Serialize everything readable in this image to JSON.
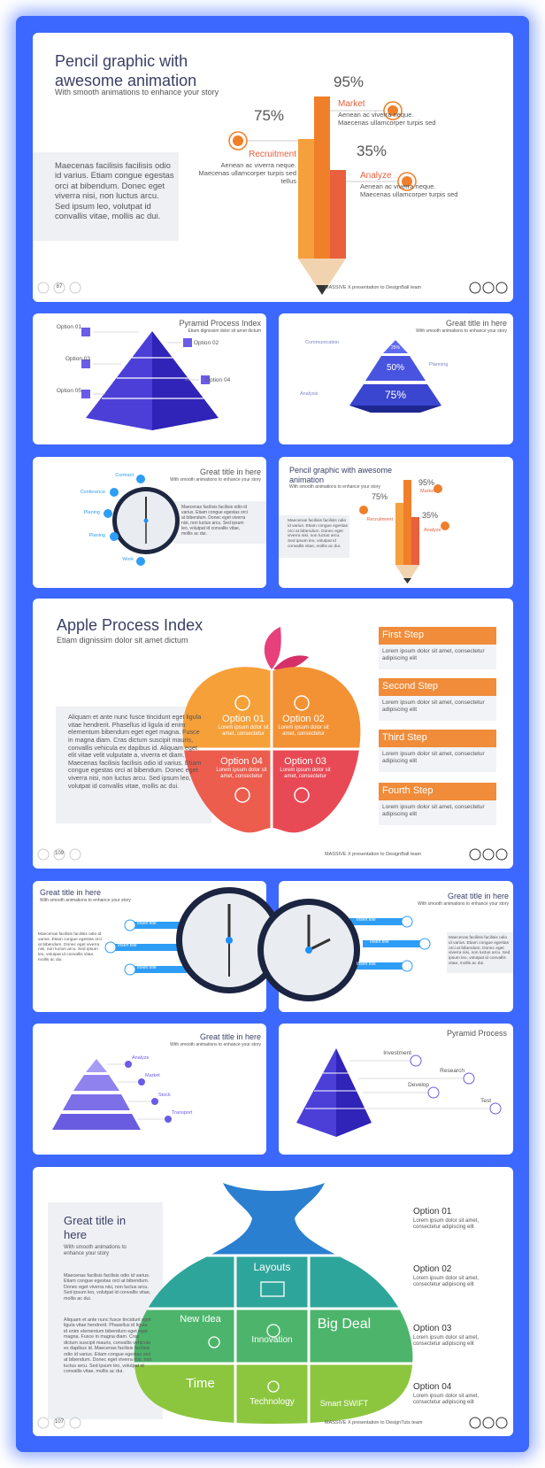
{
  "slides": [
    {
      "title": "Pencil graphic with awesome animation",
      "subtitle": "With smooth animations to enhance your story",
      "body": "Maecenas facilisis facilisis odio id varius. Etiam congue egestas orci at bibendum. Donec eget viverra nisi, non luctus arcu. Sed ipsum leo, volutpat id convallis vitae, mollis ac dui.",
      "items": [
        {
          "percent": "95%",
          "label": "Market",
          "text": "Aenean ac viverra neque. Maecenas ullamcorper turpis sed"
        },
        {
          "percent": "75%",
          "label": "Recruitment",
          "text": "Aenean ac viverra neque. Maecenas ullamcorper turpis sed tellus"
        },
        {
          "percent": "35%",
          "label": "Analyze",
          "text": "Aenean ac viverra neque. Maecenas ullamcorper turpis sed"
        }
      ],
      "page": "87",
      "footer": "MASSIVE X presentation to DesignBall team"
    },
    {
      "title": "Pyramid Process Index",
      "subtitle": "Etiam dignissim dolor sit amet dictum",
      "options": [
        "Option 01",
        "Option 02",
        "Option 03",
        "Option 04",
        "Option 05"
      ]
    },
    {
      "title": "Great title in here",
      "subtitle": "With smooth animations to enhance your story",
      "labels": [
        "Communication",
        "Planning",
        "Analysis"
      ],
      "levels": [
        "25%",
        "50%",
        "75%"
      ]
    },
    {
      "title": "Great title in here",
      "subtitle": "With smooth animations to enhance your story",
      "labels": [
        "Contract",
        "Conference",
        "Planing",
        "Planing",
        "Work"
      ],
      "body": "Maecenas facilisis facilisis odio id varius. Etiam congue egestas orci at bibendum. Donec eget viverra nisi, non luctus arcu. Sed ipsum leo, volutpat id convallis vitae, mollis ac dui."
    },
    {
      "title": "Pencil graphic with awesome animation",
      "subtitle": "With smooth animations to enhance your story",
      "body": "Maecenas facilisis facilisis odio id varius. Etiam congue egestas orci at bibendum. Donec eget viverra nisi, non luctus arcu. Sed ipsum leo, volutpat id convallis vitae, mollis ac dui.",
      "items": [
        {
          "percent": "95%",
          "label": "Market"
        },
        {
          "percent": "75%",
          "label": "Recruitment"
        },
        {
          "percent": "35%",
          "label": "Analyze"
        }
      ]
    },
    {
      "title": "Apple Process Index",
      "subtitle": "Etiam dignissim dolor sit amet dictum",
      "body": "Aliquam et ante nunc fusce tincidunt eget ligula vitae hendrerit. Phasellus id ligula id enim elementum bibendum eget eget magna. Fusce in magna diam. Cras dictum suscipit mauris, convallis vehicula ex dapibus id. Aliquam eget elit vitae velit vulputate a, viverra et diam. Maecenas facilisis facilisis odio id varius. Etiam congue egestas orci at bibendum. Donec eget viverra nisi, non luctus arcu. Sed ipsum leo, volutpat id convallis vitae, mollis ac dui.",
      "options": [
        {
          "label": "Option 01",
          "text": "Lorem ipsum dolor sit amet, consectetur"
        },
        {
          "label": "Option 02",
          "text": "Lorem ipsum dolor sit amet, consectetur"
        },
        {
          "label": "Option 04",
          "text": "Lorem ipsum dolor sit amet, consectetur"
        },
        {
          "label": "Option 03",
          "text": "Lorem ipsum dolor sit amet, consectetur"
        }
      ],
      "steps": [
        {
          "label": "First Step",
          "text": "Lorem ipsum dolor sit amet, consectetur adipiscing elit"
        },
        {
          "label": "Second Step",
          "text": "Lorem ipsum dolor sit amet, consectetur adipiscing elit"
        },
        {
          "label": "Third Step",
          "text": "Lorem ipsum dolor sit amet, consectetur adipiscing elit"
        },
        {
          "label": "Fourth Step",
          "text": "Lorem ipsum dolor sit amet, consectetur adipiscing elit"
        }
      ],
      "page": "109",
      "footer": "MASSIVE X presentation to DesignBall team"
    },
    {
      "title": "Great title in here",
      "subtitle": "With smooth animations to enhance your story",
      "labels": [
        "Insert title",
        "Insert title",
        "Insert title"
      ],
      "body": "Maecenas facilisis facilisis odio id varius. Etiam congue egestas orci at bibendum. Donec eget viverra nisi, non luctus arcu. Sed ipsum leo, volutpat id convallis vitae, mollis ac dui."
    },
    {
      "title": "Great title in here",
      "subtitle": "With smooth animations to enhance your story",
      "labels": [
        "Insert title",
        "Insert title",
        "Insert title"
      ],
      "body": "Maecenas facilisis facilisis odio id varius. Etiam congue egestas orci at bibendum. Donec eget viverra nisi, non luctus arcu. Sed ipsum leo, volutpat id convallis vitae, mollis ac dui."
    },
    {
      "title": "Great title in here",
      "subtitle": "With smooth animations to enhance your story",
      "labels": [
        "Analyze",
        "Market",
        "Stock",
        "Transport"
      ]
    },
    {
      "title": "Pyramid Process",
      "labels": [
        "Investment",
        "Research",
        "Develop",
        "Test"
      ]
    },
    {
      "title": "Great title in here",
      "subtitle": "With smooth animations to enhance your story",
      "body": [
        "Maecenas facilisis facilisis odio id varius. Etiam congue egestas orci at bibendum. Donec eget viverra nisi, non luctus arcu. Sed ipsum leo, volutpat id convallis vitae, mollis ac dui.",
        "Aliquam et ante nunc fusce tincidunt eget ligula vitae hendrerit. Phasellus id ligula id enim elementum bibendum eget eget magna. Fusce in magna diam. Cras dictum suscipit mauris, convallis vehicula ex dapibus id. Maecenas facilisis facilisis odio id varius. Etiam congue egestas orci at bibendum. Donec eget viverra nisi, non luctus arcu. Sed ipsum leo, volutpat id convallis vitae, mollis ac dui."
      ],
      "cells": [
        "Layouts",
        "New Idea",
        "Innovation",
        "Big Deal",
        "Time",
        "Technology",
        "Smart SWIFT"
      ],
      "options": [
        {
          "label": "Option 01",
          "text": "Lorem ipsum dolor sit amet, consectetur adipiscing elit"
        },
        {
          "label": "Option 02",
          "text": "Lorem ipsum dolor sit amet, consectetur adipiscing elit"
        },
        {
          "label": "Option 03",
          "text": "Lorem ipsum dolor sit amet, consectetur adipiscing elit"
        },
        {
          "label": "Option 04",
          "text": "Lorem ipsum dolor sit amet, consectetur adipiscing elit"
        }
      ],
      "page": "107",
      "footer": "MASSIVE X presentation to DesignTuts team"
    }
  ]
}
